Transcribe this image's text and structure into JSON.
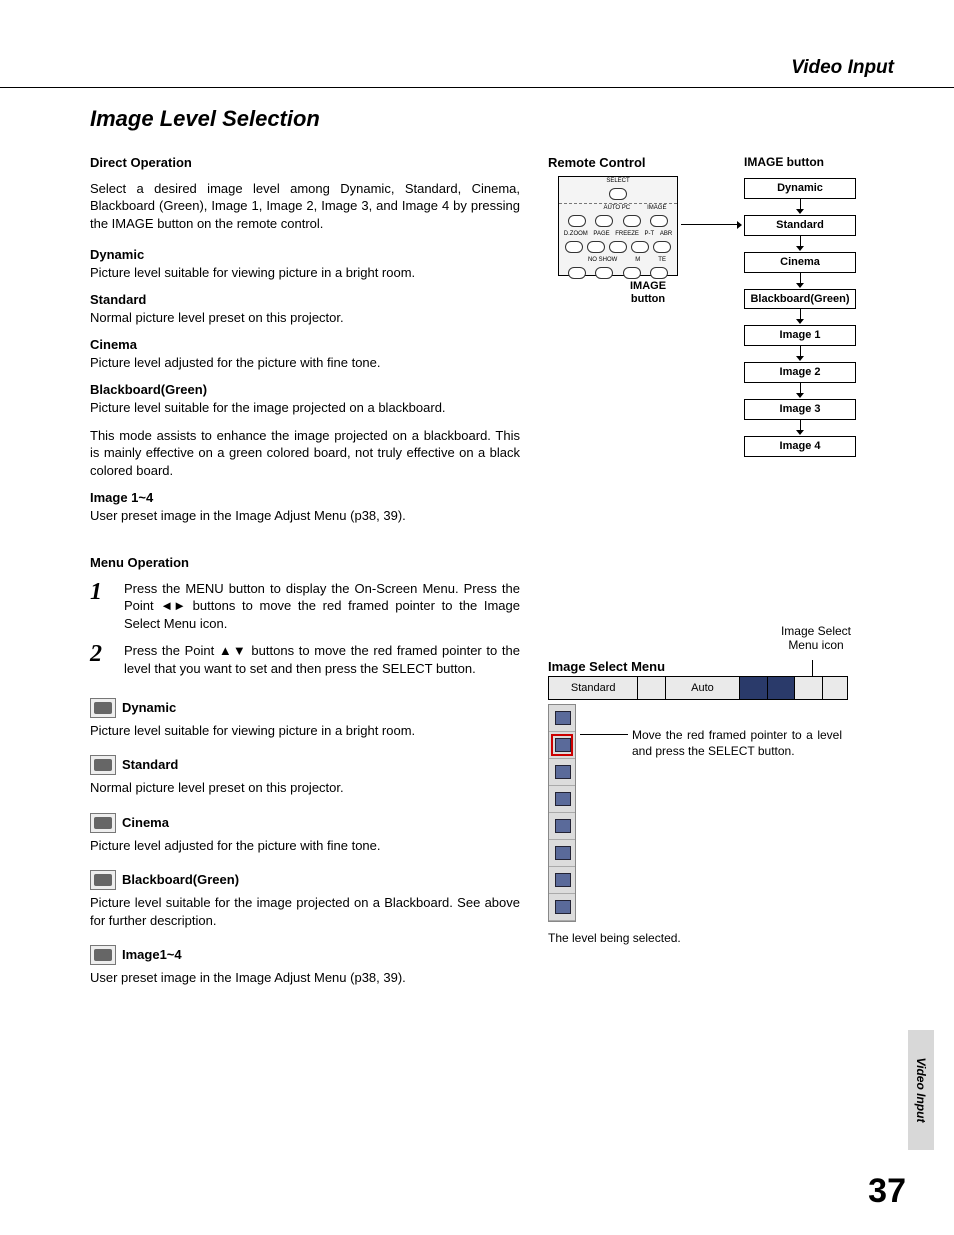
{
  "header": {
    "section": "Video Input"
  },
  "title": "Image Level Selection",
  "direct": {
    "heading": "Direct Operation",
    "intro": "Select a desired image level among Dynamic, Standard, Cinema, Blackboard (Green), Image 1, Image 2, Image 3, and Image 4 by pressing the IMAGE button on the remote control.",
    "modes": [
      {
        "name": "Dynamic",
        "desc": "Picture level suitable for viewing picture in a bright room."
      },
      {
        "name": "Standard",
        "desc": "Normal picture level preset on this projector."
      },
      {
        "name": "Cinema",
        "desc": "Picture level adjusted for the picture with fine tone."
      },
      {
        "name": "Blackboard(Green)",
        "desc": "Picture level suitable for the image projected on a blackboard.",
        "desc2": "This mode assists to enhance the image projected on a blackboard.  This is mainly effective on a green colored board, not truly effective on a black colored board."
      },
      {
        "name": "Image 1~4",
        "desc": "User preset image in the Image Adjust Menu (p38, 39)."
      }
    ]
  },
  "menu": {
    "heading": "Menu Operation",
    "steps": [
      "Press the MENU button to display the On-Screen Menu.  Press the Point ◄► buttons to move the red framed pointer to the Image Select Menu icon.",
      "Press the Point ▲▼ buttons to move the red framed pointer to the level that you want to set and then press the SELECT button."
    ],
    "iconModes": [
      {
        "name": "Dynamic",
        "desc": "Picture level suitable for viewing picture in a bright room."
      },
      {
        "name": "Standard",
        "desc": "Normal picture level preset on this projector."
      },
      {
        "name": "Cinema",
        "desc": "Picture level adjusted for the picture with fine tone."
      },
      {
        "name": "Blackboard(Green)",
        "desc": "Picture level suitable for the image projected on a Blackboard.  See above for further description."
      },
      {
        "name": "Image1~4",
        "desc": "User preset image in the Image Adjust Menu (p38, 39)."
      }
    ]
  },
  "remote": {
    "heading": "Remote Control",
    "imgBtnHeading": "IMAGE button",
    "imgBtnLabel": "IMAGE button",
    "flow": [
      "Dynamic",
      "Standard",
      "Cinema",
      "Blackboard(Green)",
      "Image 1",
      "Image 2",
      "Image 3",
      "Image 4"
    ],
    "labels": {
      "select": "SELECT",
      "row1": [
        "AUTO PC",
        "IMAGE"
      ],
      "row2": [
        "D.ZOOM",
        "PAGE",
        "FREEZE",
        "P-T",
        "ABR"
      ],
      "row3": [
        "NO SHOW",
        "M",
        "TE"
      ]
    }
  },
  "ism": {
    "iconLabel": "Image Select Menu icon",
    "title": "Image Select Menu",
    "barLeft": "Standard",
    "barRight": "Auto",
    "note": "Move the red framed pointer to a level and press the SELECT button.",
    "caption": "The level being selected.",
    "sideCount": 8,
    "selectedIndex": 1
  },
  "page": {
    "number": "37",
    "tab": "Video Input"
  }
}
